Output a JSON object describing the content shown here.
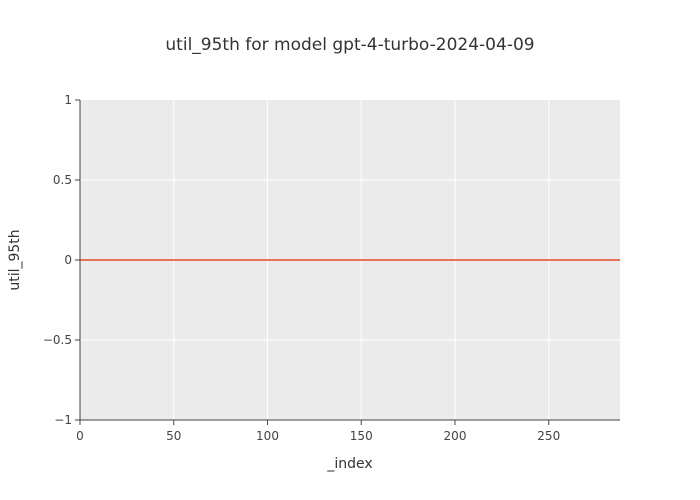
{
  "chart_data": {
    "type": "line",
    "title": "util_95th for model gpt-4-turbo-2024-04-09",
    "xlabel": "_index",
    "ylabel": "util_95th",
    "xlim": [
      0,
      288
    ],
    "ylim": [
      -1,
      1
    ],
    "x_ticks": [
      0,
      50,
      100,
      150,
      200,
      250
    ],
    "y_ticks": [
      1,
      0.5,
      0,
      -0.5,
      -1
    ],
    "y_tick_labels": [
      "1",
      "0.5",
      "0",
      "−0.5",
      "−1"
    ],
    "grid": true,
    "series": [
      {
        "x": [
          0,
          288
        ],
        "values": [
          0,
          0
        ]
      }
    ]
  },
  "colors": {
    "plot_bg": "#ebebeb",
    "grid": "#ffffff",
    "line": "#e8735a",
    "text": "#444444"
  }
}
